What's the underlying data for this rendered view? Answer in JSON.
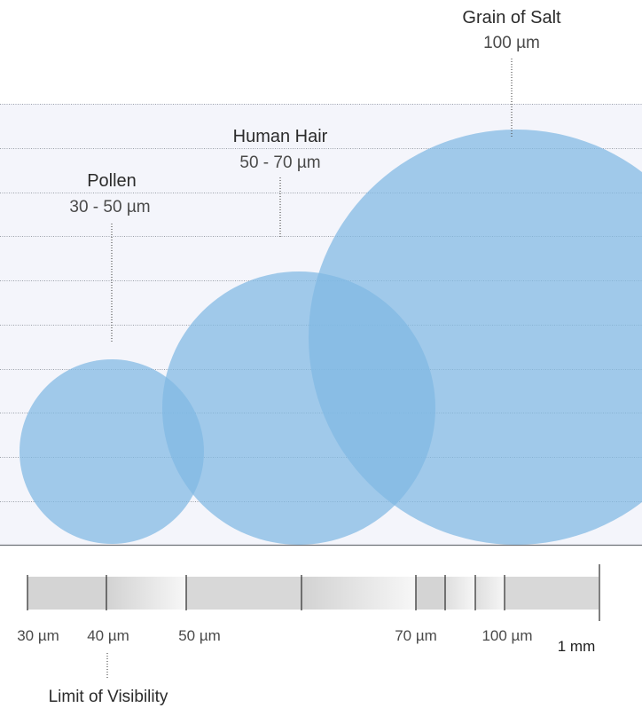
{
  "diagram": {
    "particles": [
      {
        "id": "pollen",
        "name": "Pollen",
        "size_label": "30 - 50 µm"
      },
      {
        "id": "hair",
        "name": "Human Hair",
        "size_label": "50 - 70 µm"
      },
      {
        "id": "salt",
        "name": "Grain of Salt",
        "size_label": "100 µm"
      }
    ],
    "scale": {
      "tick_labels": [
        "30 µm",
        "40 µm",
        "50 µm",
        "70 µm",
        "100 µm",
        "1 mm"
      ],
      "limit_label": "Limit of Visibility"
    }
  },
  "colors": {
    "circle_fill": "#7fb8e3",
    "panel_bg": "#f4f5fb",
    "grid_line": "#9aa0a8",
    "scale_bar": "#d6d6d6"
  }
}
